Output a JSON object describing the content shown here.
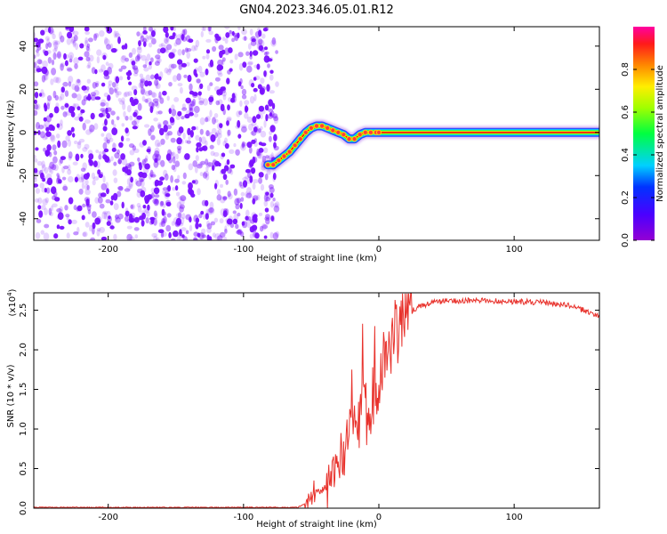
{
  "title": "GN04.2023.346.05.01.R12",
  "chart_data": [
    {
      "type": "heatmap",
      "xlabel": "Height of straight line (km)",
      "ylabel": "Frequency (Hz)",
      "xlim": [
        -255,
        163
      ],
      "ylim": [
        -50,
        49
      ],
      "x_ticks": [
        -200,
        -100,
        0,
        100
      ],
      "y_ticks": [
        -40,
        -20,
        0,
        20,
        40
      ],
      "noise_region": {
        "x_range": [
          -255,
          -75
        ],
        "y_range": [
          -50,
          49
        ],
        "color": "#7a10ff"
      },
      "signal_ridge": {
        "x": [
          -82,
          -78,
          -74,
          -70,
          -66,
          -62,
          -58,
          -54,
          -50,
          -46,
          -42,
          -38,
          -34,
          -30,
          -26,
          -22,
          -18,
          -14,
          -10,
          -6,
          -2,
          0,
          20,
          60,
          100,
          140,
          163
        ],
        "y": [
          -15,
          -15,
          -13,
          -11,
          -9,
          -6,
          -3,
          0,
          2,
          3,
          3,
          2,
          1,
          0,
          -1,
          -3,
          -3,
          -1,
          0,
          0,
          0,
          0,
          0,
          0,
          0,
          0,
          0
        ],
        "core_color": "#ff1010"
      },
      "colorbar": {
        "label": "Normalized spectral amplitude",
        "range": [
          0.0,
          1.0
        ],
        "ticks": [
          0.0,
          0.2,
          0.4,
          0.6,
          0.8
        ]
      }
    },
    {
      "type": "line",
      "xlabel": "Height of straight line (km)",
      "ylabel": "SNR (10 * v/v)",
      "scale_label": "(x10",
      "scale_exp": "4",
      "scale_close": ")",
      "xlim": [
        -255,
        163
      ],
      "ylim": [
        0,
        2.72
      ],
      "x_ticks": [
        -200,
        -100,
        0,
        100
      ],
      "y_ticks": [
        0.0,
        0.5,
        1.0,
        1.5,
        2.0,
        2.5
      ],
      "color": "#e8322c",
      "envelope": {
        "x": [
          -255,
          -60,
          -52,
          -45,
          -40,
          -35,
          -30,
          -25,
          -20,
          -15,
          -10,
          -5,
          0,
          5,
          10,
          15,
          20,
          30,
          40,
          50,
          60,
          80,
          100,
          120,
          140,
          155,
          163
        ],
        "y": [
          0.01,
          0.01,
          0.08,
          0.2,
          0.3,
          0.4,
          0.6,
          0.75,
          0.95,
          1.05,
          1.2,
          1.4,
          1.7,
          1.9,
          2.1,
          2.3,
          2.45,
          2.55,
          2.6,
          2.62,
          2.62,
          2.62,
          2.61,
          2.6,
          2.56,
          2.48,
          2.42
        ]
      },
      "spikes": [
        {
          "x": -48,
          "y": 0.35
        },
        {
          "x": -37,
          "y": 0.55
        },
        {
          "x": -28,
          "y": 0.95
        },
        {
          "x": -20,
          "y": 1.75
        },
        {
          "x": -12,
          "y": 2.33
        },
        {
          "x": -8,
          "y": 1.05
        },
        {
          "x": -3,
          "y": 2.3
        },
        {
          "x": 5,
          "y": 2.1
        },
        {
          "x": 12,
          "y": 2.63
        },
        {
          "x": 18,
          "y": 2.48
        }
      ]
    }
  ]
}
